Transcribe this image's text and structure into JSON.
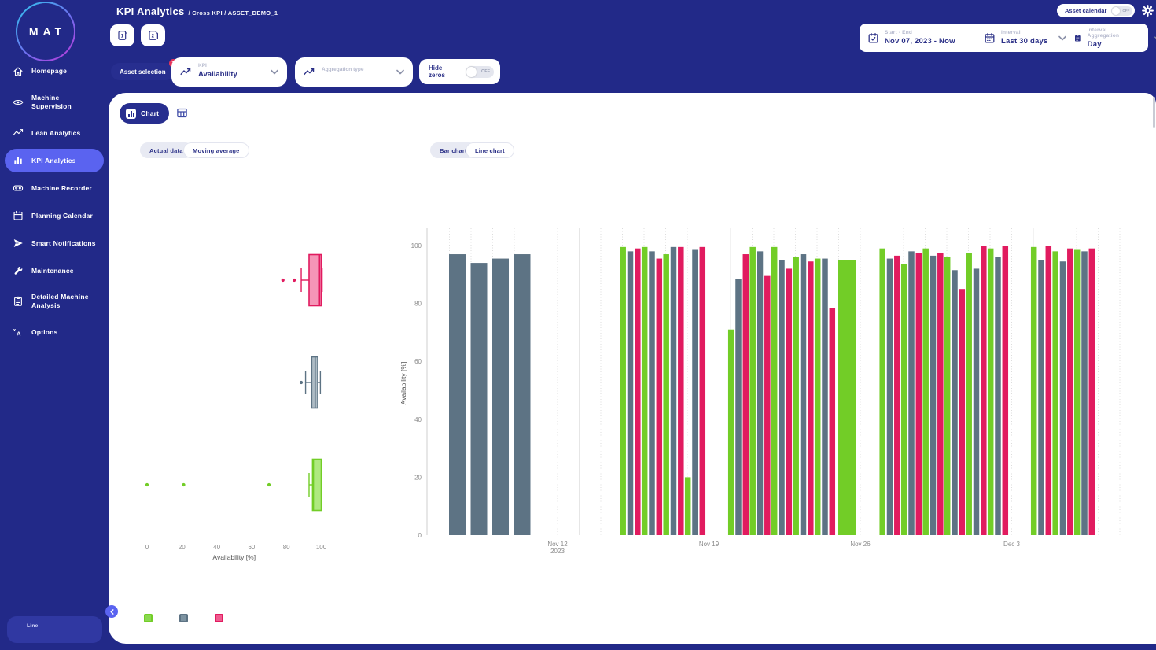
{
  "colors": {
    "sidebar_bg": "#222988",
    "active_nav": "#5a63f0",
    "accent_navy": "#2b3087",
    "badge_red": "#e5345a",
    "green": "#72cd27",
    "slate": "#5d7384",
    "pink": "#e11b5f"
  },
  "sidebar": {
    "logo_text": "MAT",
    "items": [
      {
        "label": "Homepage",
        "icon": "home",
        "active": false
      },
      {
        "label": "Machine Supervision",
        "icon": "eye",
        "active": false
      },
      {
        "label": "Lean Analytics",
        "icon": "trend",
        "active": false
      },
      {
        "label": "KPI Analytics",
        "icon": "bar-chart",
        "active": true
      },
      {
        "label": "Machine Recorder",
        "icon": "recorder",
        "active": false
      },
      {
        "label": "Planning Calendar",
        "icon": "calendar",
        "active": false
      },
      {
        "label": "Smart Notifications",
        "icon": "send",
        "active": false
      },
      {
        "label": "Maintenance",
        "icon": "wrench",
        "active": false
      },
      {
        "label": "Detailed Machine Analysis",
        "icon": "clipboard",
        "active": false
      },
      {
        "label": "Options",
        "icon": "translate",
        "active": false
      }
    ],
    "line_panel_label": "Line"
  },
  "header": {
    "title": "KPI Analytics",
    "breadcrumb": "/ Cross KPI / ASSET_DEMO_1",
    "book_buttons": [
      {
        "label": "1"
      },
      {
        "label": "2"
      }
    ],
    "asset_calendar": {
      "label": "Asset calendar",
      "toggle_state": "OFF"
    }
  },
  "date_controls": {
    "start_end": {
      "label": "Start - End",
      "value": "Nov 07, 2023 - Now"
    },
    "interval": {
      "label": "Interval",
      "value": "Last 30 days"
    },
    "aggregation": {
      "label": "Interval Aggregation",
      "value": "Day"
    }
  },
  "filters": {
    "asset_selection": {
      "label": "Asset selection",
      "badge": "3"
    },
    "kpi": {
      "label": "KPI",
      "value": "Availability"
    },
    "aggregation_type": {
      "label": "Aggregation type",
      "value": ""
    },
    "hide_zeros": {
      "label": "Hide zeros",
      "toggle_state": "OFF"
    }
  },
  "view_tabs": {
    "chart": "Chart"
  },
  "chart_controls": {
    "actual_data": "Actual data",
    "moving_average": "Moving average",
    "bar_chart": "Bar chart",
    "line_chart": "Line chart",
    "selected_mode": "Actual data",
    "selected_type": "Bar chart"
  },
  "legend": [
    {
      "name": "green-series",
      "color": "#72cd27",
      "fill": "#8ad94f"
    },
    {
      "name": "gray-series",
      "color": "#5d7384",
      "fill": "#7d93a1"
    },
    {
      "name": "pink-series",
      "color": "#e11b5f",
      "fill": "#ef5c90"
    }
  ],
  "chart_data": [
    {
      "type": "box",
      "orientation": "horizontal",
      "xlabel": "Availability [%]",
      "xlim": [
        0,
        100
      ],
      "xticks": [
        0,
        20,
        40,
        60,
        80,
        100
      ],
      "grid": false,
      "series": [
        {
          "name": "pink",
          "color": "#e11b5f",
          "fill": "#f2719f",
          "low": 88.5,
          "q1": 93,
          "median": 99,
          "q3": 100,
          "high": 100.5,
          "outliers": [
            78,
            84.5
          ]
        },
        {
          "name": "gray",
          "color": "#5d7384",
          "fill": "#93a6b2",
          "low": 91,
          "q1": 94.5,
          "median": 96.5,
          "q3": 98,
          "high": 99.5,
          "outliers": [
            88.5
          ]
        },
        {
          "name": "green",
          "color": "#72cd27",
          "fill": "#94e156",
          "low": 93,
          "q1": 95,
          "median": 95.5,
          "q3": 100,
          "high": 100,
          "outliers": [
            0,
            21,
            70
          ]
        }
      ]
    },
    {
      "type": "bar",
      "ylabel": "Availability [%]",
      "ylim": [
        0,
        100
      ],
      "yticks": [
        0,
        20,
        40,
        60,
        80,
        100
      ],
      "interval": "Nov 07, 2023 - Now (Last 30 days, daily)",
      "week_ticks": [
        {
          "day": 5,
          "label": "Nov 12",
          "sub": "2023"
        },
        {
          "day": 12,
          "label": "Nov 19"
        },
        {
          "day": 19,
          "label": "Nov 26"
        },
        {
          "day": 26,
          "label": "Dec 3"
        }
      ],
      "series_names": [
        "green",
        "gray",
        "pink"
      ],
      "series_colors": {
        "green": "#72cd27",
        "gray": "#5d7384",
        "pink": "#e11b5f"
      },
      "bars": [
        {
          "day": 0,
          "gray": 97
        },
        {
          "day": 1,
          "gray": 94
        },
        {
          "day": 2,
          "gray": 95.5
        },
        {
          "day": 3,
          "gray": 97
        },
        {
          "day": 8,
          "green": 99.5,
          "gray": 98,
          "pink": 99
        },
        {
          "day": 9,
          "green": 99.5,
          "gray": 98,
          "pink": 95.5
        },
        {
          "day": 10,
          "green": 97,
          "gray": 99.5,
          "pink": 99.5
        },
        {
          "day": 11,
          "green": 20,
          "gray": 98.5,
          "pink": 99.5
        },
        {
          "day": 13,
          "green": 71,
          "gray": 88.5,
          "pink": 97
        },
        {
          "day": 14,
          "green": 99.5,
          "gray": 98,
          "pink": 89.5
        },
        {
          "day": 15,
          "green": 99.5,
          "gray": 95,
          "pink": 92
        },
        {
          "day": 16,
          "green": 96,
          "gray": 97,
          "pink": 94.5
        },
        {
          "day": 17,
          "green": 95.5,
          "gray": 95.5,
          "pink": 78.5
        },
        {
          "day": 18,
          "green": 95,
          "wide": true
        },
        {
          "day": 20,
          "green": 99,
          "gray": 95.5,
          "pink": 96.5
        },
        {
          "day": 21,
          "green": 93.5,
          "gray": 98,
          "pink": 97.5
        },
        {
          "day": 22,
          "green": 99,
          "gray": 96.5,
          "pink": 97.5
        },
        {
          "day": 23,
          "green": 96,
          "gray": 91.5,
          "pink": 85
        },
        {
          "day": 24,
          "green": 97.5,
          "gray": 92,
          "pink": 100
        },
        {
          "day": 25,
          "green": 99,
          "gray": 96,
          "pink": 100
        },
        {
          "day": 27,
          "green": 99.5,
          "gray": 95,
          "pink": 100
        },
        {
          "day": 28,
          "green": 98,
          "gray": 94.5,
          "pink": 99
        },
        {
          "day": 29,
          "green": 98.5,
          "gray": 98,
          "pink": 99
        }
      ]
    }
  ]
}
